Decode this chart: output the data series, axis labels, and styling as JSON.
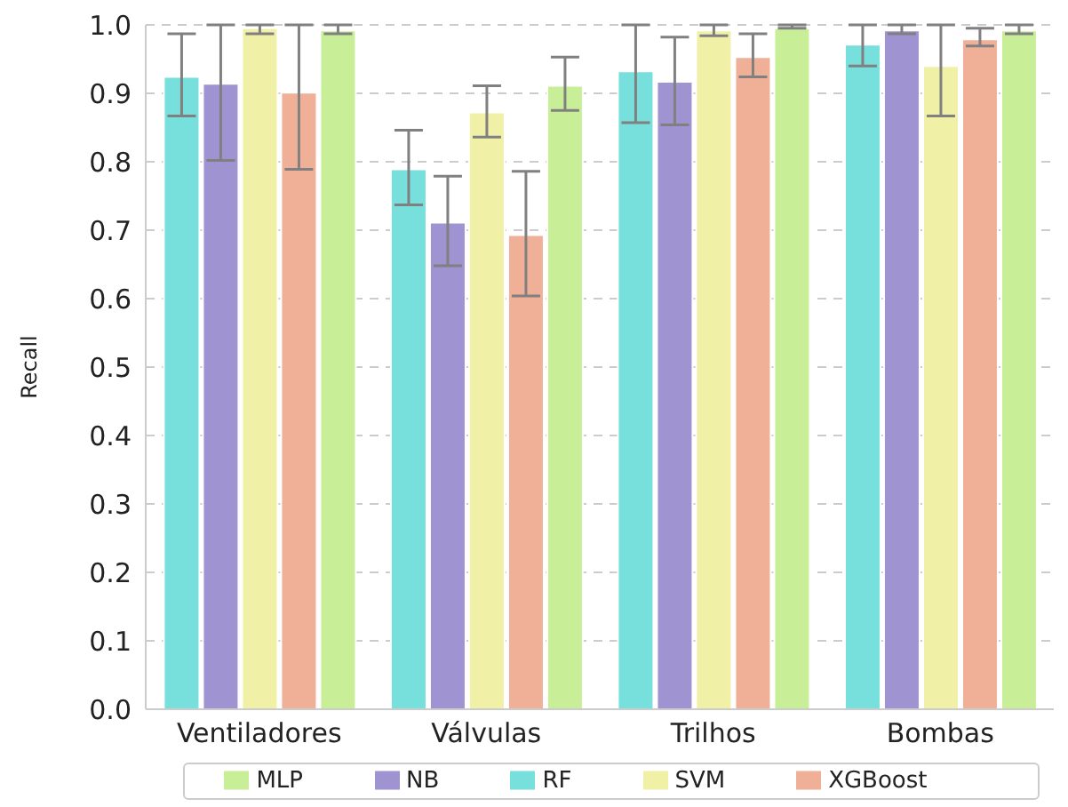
{
  "chart_data": {
    "type": "bar",
    "ylabel": "Recall",
    "categories": [
      "Ventiladores",
      "Válvulas",
      "Trilhos",
      "Bombas"
    ],
    "series": [
      {
        "name": "RF",
        "color": "#77dfdc",
        "values": [
          0.924,
          0.789,
          0.932,
          0.971
        ],
        "errors": [
          [
            0.867,
            0.987
          ],
          [
            0.737,
            0.846
          ],
          [
            0.857,
            1.0
          ],
          [
            0.94,
            1.0
          ]
        ]
      },
      {
        "name": "NB",
        "color": "#9f93d1",
        "values": [
          0.914,
          0.711,
          0.917,
          0.992
        ],
        "errors": [
          [
            0.802,
            1.0
          ],
          [
            0.648,
            0.779
          ],
          [
            0.854,
            0.982
          ],
          [
            0.987,
            1.0
          ]
        ]
      },
      {
        "name": "SVM",
        "color": "#f0f0a6",
        "values": [
          0.995,
          0.872,
          0.992,
          0.94
        ],
        "errors": [
          [
            0.987,
            1.0
          ],
          [
            0.836,
            0.911
          ],
          [
            0.984,
            1.0
          ],
          [
            0.867,
            1.0
          ]
        ]
      },
      {
        "name": "XGBoost",
        "color": "#f0af97",
        "values": [
          0.901,
          0.693,
          0.953,
          0.979
        ],
        "errors": [
          [
            0.789,
            1.0
          ],
          [
            0.604,
            0.786
          ],
          [
            0.924,
            0.987
          ],
          [
            0.969,
            0.995
          ]
        ]
      },
      {
        "name": "MLP",
        "color": "#c8ef98",
        "values": [
          0.992,
          0.911,
          0.995,
          0.992
        ],
        "errors": [
          [
            0.987,
            1.0
          ],
          [
            0.875,
            0.953
          ],
          [
            0.995,
            1.0
          ],
          [
            0.987,
            1.0
          ]
        ]
      }
    ],
    "ylim": [
      0,
      1
    ],
    "yticks": [
      {
        "value": 0,
        "label": "0.0"
      },
      {
        "value": 0.1,
        "label": "0.1"
      },
      {
        "value": 0.2,
        "label": "0.2"
      },
      {
        "value": 0.3,
        "label": "0.3"
      },
      {
        "value": 0.4,
        "label": "0.4"
      },
      {
        "value": 0.5,
        "label": "0.5"
      },
      {
        "value": 0.6,
        "label": "0.6"
      },
      {
        "value": 0.7,
        "label": "0.7"
      },
      {
        "value": 0.8,
        "label": "0.8"
      },
      {
        "value": 0.9,
        "label": "0.9"
      },
      {
        "value": 1,
        "label": "1.0"
      }
    ],
    "grid": "y",
    "legend": "bottom"
  }
}
